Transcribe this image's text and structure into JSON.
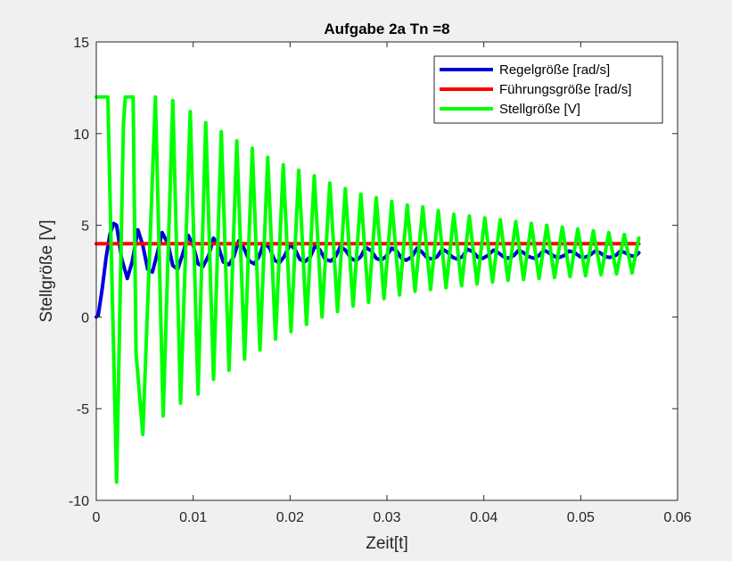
{
  "chart_data": {
    "type": "line",
    "title": "Aufgabe 2a Tn =8",
    "xlabel": "Zeit[t]",
    "ylabel": "Stellgröße [V]",
    "xlim": [
      0,
      0.06
    ],
    "ylim": [
      -10,
      15
    ],
    "x_ticks": [
      0,
      0.01,
      0.02,
      0.03,
      0.04,
      0.05,
      0.06
    ],
    "x_tick_labels": [
      "0",
      "0.01",
      "0.02",
      "0.03",
      "0.04",
      "0.05",
      "0.06"
    ],
    "y_ticks": [
      -10,
      -5,
      0,
      5,
      10,
      15
    ],
    "y_tick_labels": [
      "-10",
      "-5",
      "0",
      "5",
      "10",
      "15"
    ],
    "grid": false,
    "legend_position": "top-right",
    "series": [
      {
        "name": "Regelgröße [rad/s]",
        "color": "#0000dd",
        "x": [
          0,
          0.0002,
          0.0006,
          0.001,
          0.0014,
          0.0018,
          0.0021,
          0.0026,
          0.0032,
          0.0037,
          0.0043,
          0.0048,
          0.0053,
          0.0058,
          0.0063,
          0.0068,
          0.0074,
          0.0079,
          0.0084,
          0.0089,
          0.0095,
          0.01,
          0.0105,
          0.011,
          0.0116,
          0.0121,
          0.0126,
          0.0131,
          0.0137,
          0.0142,
          0.0147,
          0.0152,
          0.0158,
          0.0163,
          0.0168,
          0.0173,
          0.0179,
          0.0184,
          0.0189,
          0.0194,
          0.02,
          0.0205,
          0.021,
          0.0215,
          0.0221,
          0.0226,
          0.0231,
          0.0236,
          0.0242,
          0.0247,
          0.0252,
          0.0257,
          0.0263,
          0.0268,
          0.0273,
          0.0278,
          0.0284,
          0.0289,
          0.0294,
          0.0299,
          0.0305,
          0.031,
          0.0315,
          0.032,
          0.0326,
          0.0331,
          0.0336,
          0.0341,
          0.0347,
          0.0352,
          0.0357,
          0.0362,
          0.0368,
          0.0373,
          0.0378,
          0.0383,
          0.0389,
          0.0394,
          0.0399,
          0.0404,
          0.041,
          0.0415,
          0.042,
          0.0425,
          0.0431,
          0.0436,
          0.0441,
          0.0446,
          0.0452,
          0.0457,
          0.0462,
          0.0467,
          0.0473,
          0.0478,
          0.0483,
          0.0488,
          0.0494,
          0.0499,
          0.0504,
          0.0509,
          0.0515,
          0.052,
          0.0525,
          0.053,
          0.0536,
          0.0541,
          0.0546,
          0.0551,
          0.0556,
          0.056
        ],
        "y": [
          0,
          0.1,
          1.5,
          3.2,
          4.5,
          5.1,
          5.0,
          3.2,
          2.1,
          3.0,
          4.75,
          3.9,
          2.6,
          2.45,
          3.5,
          4.6,
          4.0,
          2.8,
          2.6,
          3.4,
          4.45,
          3.9,
          2.9,
          2.75,
          3.35,
          4.3,
          3.85,
          3.0,
          2.85,
          3.3,
          4.15,
          3.8,
          3.05,
          2.9,
          3.3,
          4.05,
          3.75,
          3.1,
          2.95,
          3.3,
          3.95,
          3.7,
          3.15,
          3.0,
          3.3,
          3.9,
          3.65,
          3.15,
          3.05,
          3.3,
          3.85,
          3.65,
          3.2,
          3.05,
          3.3,
          3.8,
          3.6,
          3.2,
          3.1,
          3.3,
          3.75,
          3.6,
          3.2,
          3.1,
          3.3,
          3.75,
          3.55,
          3.25,
          3.15,
          3.3,
          3.7,
          3.55,
          3.25,
          3.15,
          3.3,
          3.7,
          3.55,
          3.25,
          3.2,
          3.35,
          3.65,
          3.5,
          3.3,
          3.2,
          3.35,
          3.65,
          3.5,
          3.3,
          3.2,
          3.35,
          3.65,
          3.5,
          3.3,
          3.25,
          3.35,
          3.6,
          3.5,
          3.3,
          3.25,
          3.35,
          3.6,
          3.5,
          3.3,
          3.25,
          3.35,
          3.6,
          3.5,
          3.35,
          3.3,
          3.5
        ]
      },
      {
        "name": "Führungsgröße [rad/s]",
        "color": "#ff0000",
        "x": [
          0,
          0.056
        ],
        "y": [
          4,
          4
        ]
      },
      {
        "name": "Stellgröße [V]",
        "color": "#00ff00",
        "x": [
          0,
          0.0012,
          0.0014,
          0.0021,
          0.0028,
          0.003,
          0.0038,
          0.0041,
          0.0048,
          0.0061,
          0.0069,
          0.0079,
          0.0087,
          0.0097,
          0.0105,
          0.0113,
          0.0121,
          0.0129,
          0.0137,
          0.0145,
          0.0153,
          0.0161,
          0.0169,
          0.0177,
          0.0185,
          0.0193,
          0.0201,
          0.0209,
          0.0217,
          0.0225,
          0.0233,
          0.0241,
          0.0249,
          0.0257,
          0.0265,
          0.0273,
          0.0281,
          0.0289,
          0.0297,
          0.0305,
          0.0313,
          0.0321,
          0.0329,
          0.0337,
          0.0345,
          0.0353,
          0.0361,
          0.0369,
          0.0377,
          0.0385,
          0.0393,
          0.0401,
          0.0409,
          0.0417,
          0.0425,
          0.0433,
          0.0441,
          0.0449,
          0.0457,
          0.0465,
          0.0473,
          0.0481,
          0.0489,
          0.0497,
          0.0505,
          0.0513,
          0.0521,
          0.0529,
          0.0537,
          0.0545,
          0.0553,
          0.056
        ],
        "y": [
          12,
          12,
          7.0,
          -9.0,
          10.5,
          12,
          12,
          -2.0,
          -6.4,
          12,
          -5.4,
          11.8,
          -4.7,
          11.2,
          -4.2,
          10.6,
          -3.4,
          10.1,
          -2.9,
          9.6,
          -2.3,
          9.2,
          -1.8,
          8.7,
          -1.2,
          8.3,
          -0.8,
          8.0,
          -0.4,
          7.7,
          0.0,
          7.3,
          0.3,
          7.0,
          0.6,
          6.7,
          0.8,
          6.5,
          1.0,
          6.3,
          1.2,
          6.1,
          1.4,
          6.0,
          1.5,
          5.8,
          1.6,
          5.6,
          1.7,
          5.5,
          1.8,
          5.4,
          1.9,
          5.3,
          2.0,
          5.2,
          2.05,
          5.1,
          2.1,
          5.0,
          2.15,
          4.9,
          2.2,
          4.8,
          2.25,
          4.7,
          2.3,
          4.6,
          2.35,
          4.5,
          2.4,
          4.3
        ]
      }
    ]
  }
}
